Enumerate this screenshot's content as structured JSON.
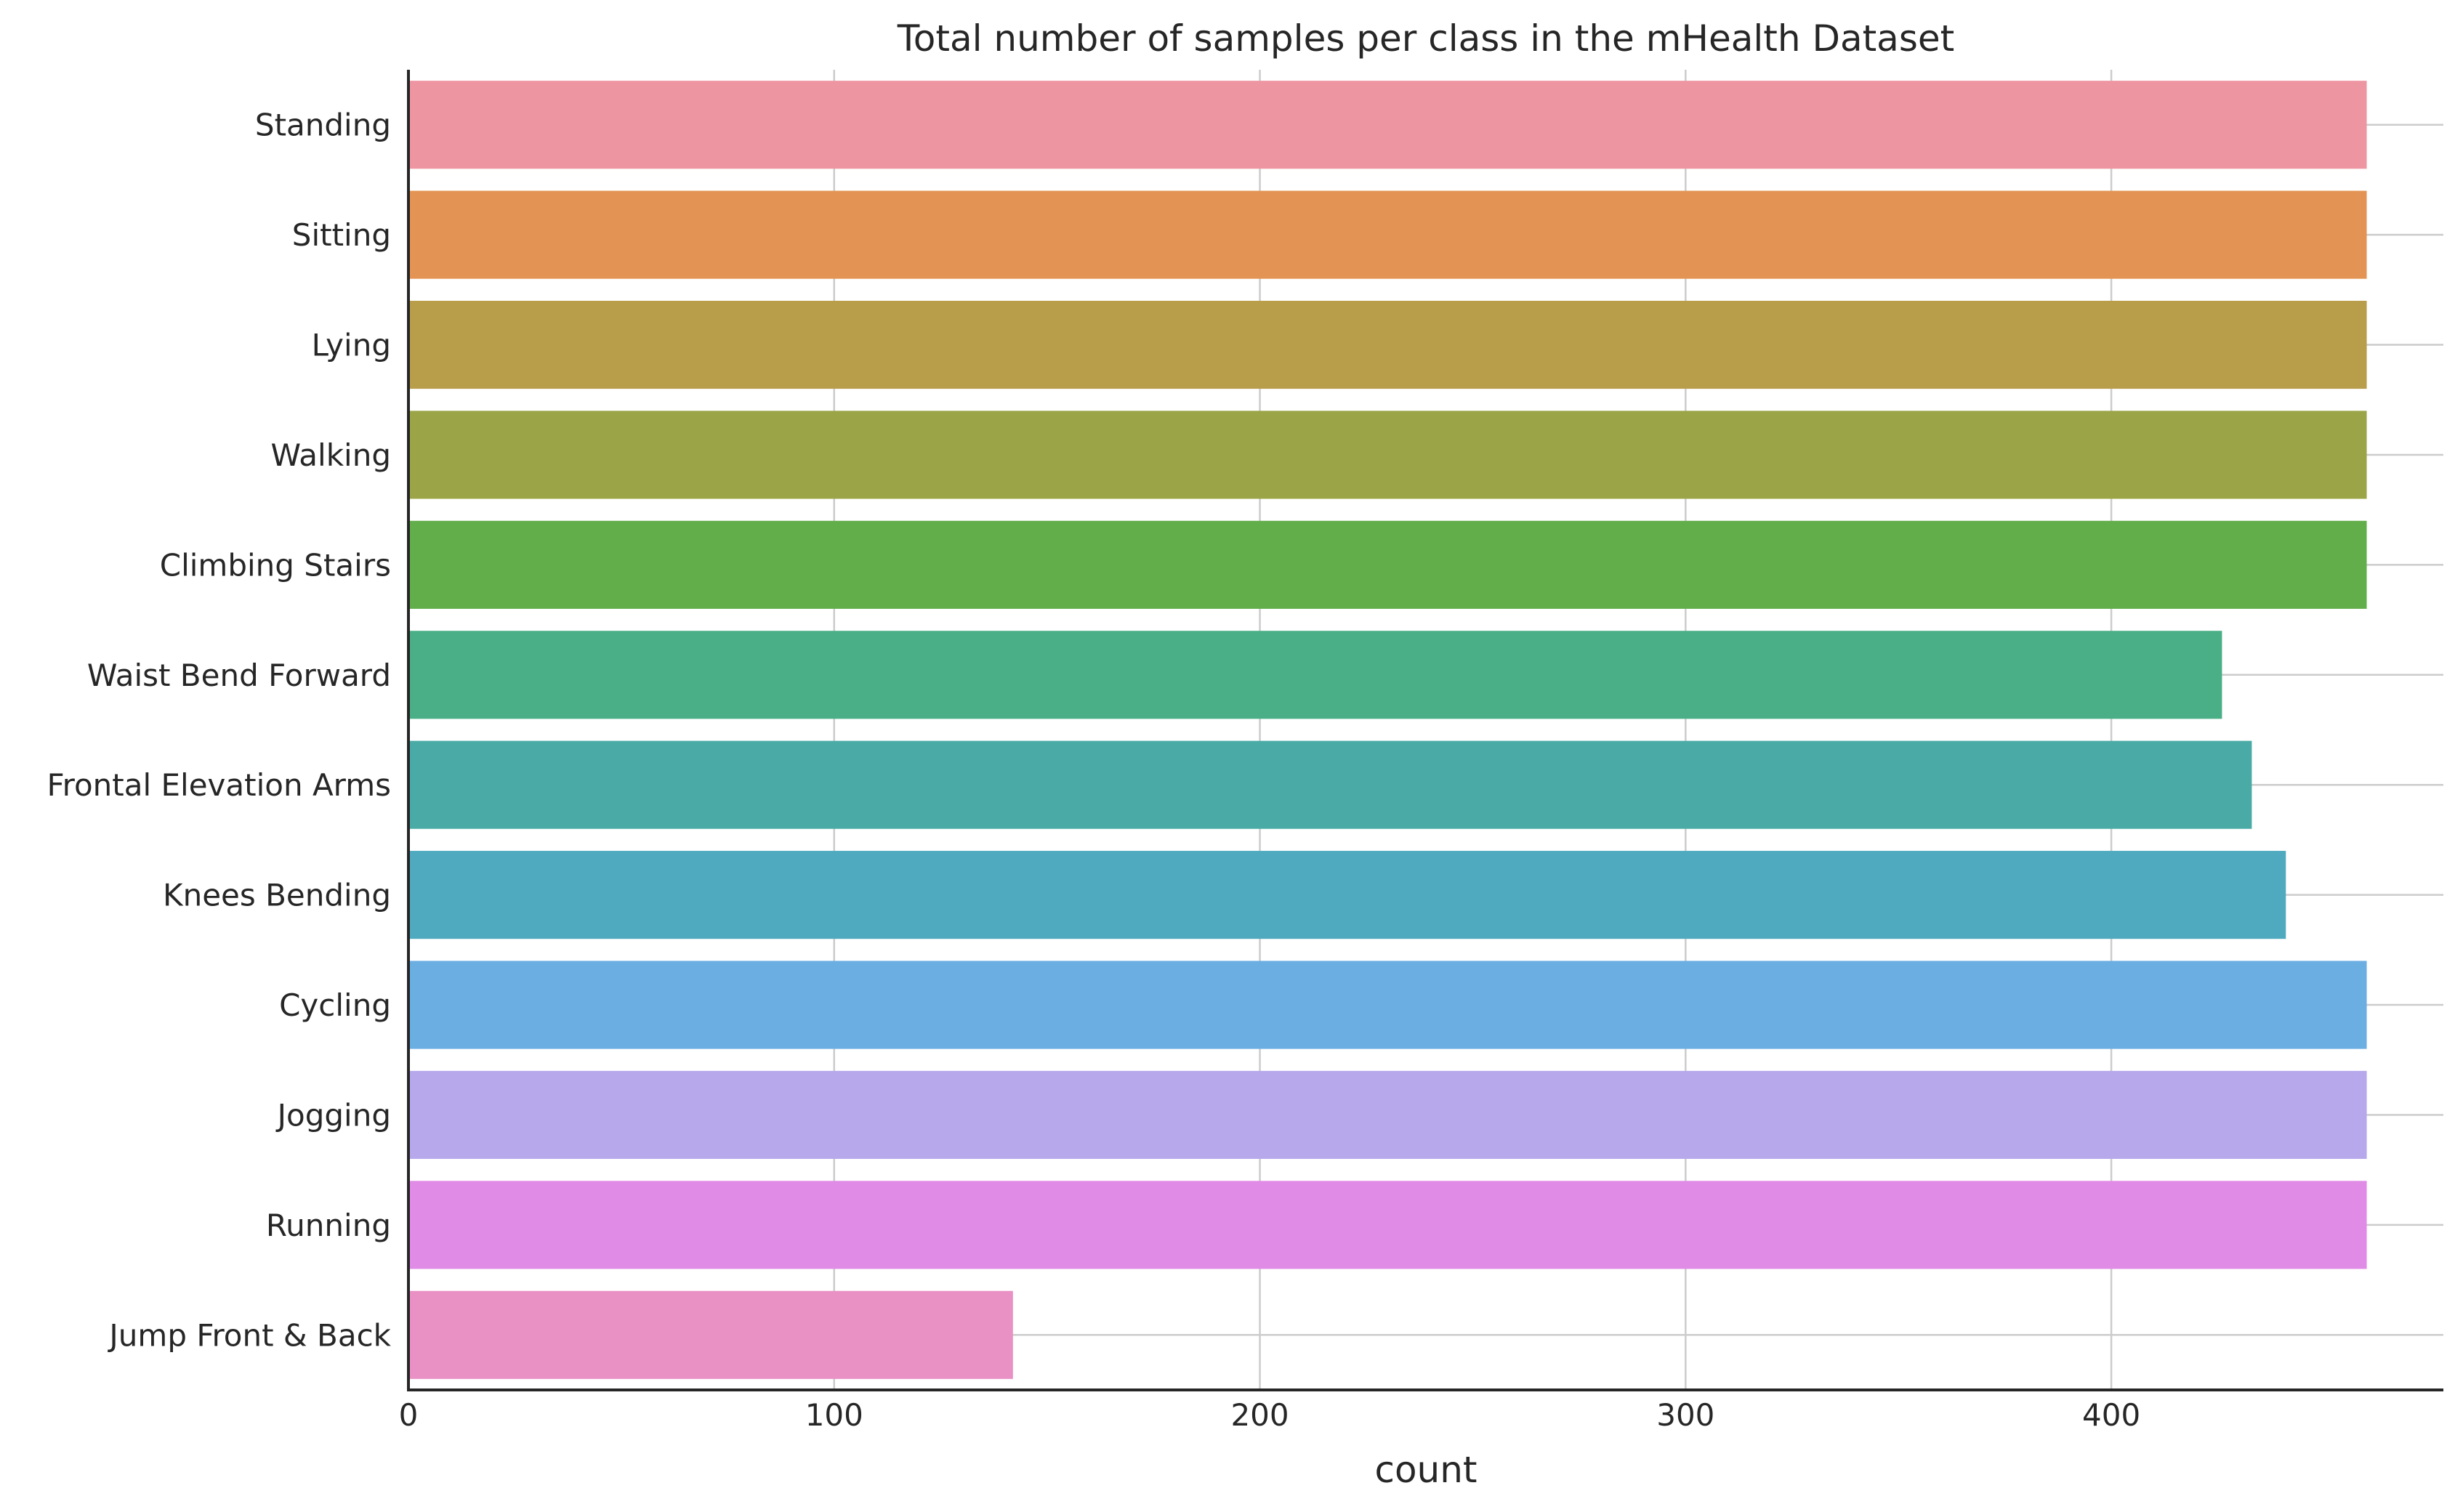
{
  "chart_data": {
    "type": "bar",
    "orientation": "horizontal",
    "title": "Total number of samples per class in the mHealth Dataset",
    "xlabel": "count",
    "ylabel": "",
    "categories": [
      "Standing",
      "Sitting",
      "Lying",
      "Walking",
      "Climbing Stairs",
      "Waist Bend Forward",
      "Frontal Elevation Arms",
      "Knees Bending",
      "Cycling",
      "Jogging",
      "Running",
      "Jump Front & Back"
    ],
    "values": [
      460,
      460,
      460,
      460,
      460,
      426,
      433,
      441,
      460,
      460,
      460,
      142
    ],
    "colors": [
      "#ed96a2",
      "#e39454",
      "#b89d4a",
      "#9ba547",
      "#62ae4a",
      "#4aae86",
      "#4aaba6",
      "#4faabf",
      "#6aaee2",
      "#b7a8ec",
      "#e08be6",
      "#e990c5"
    ],
    "xlim": [
      0,
      478
    ],
    "xticks": [
      0,
      100,
      200,
      300,
      400
    ],
    "grid": true
  }
}
